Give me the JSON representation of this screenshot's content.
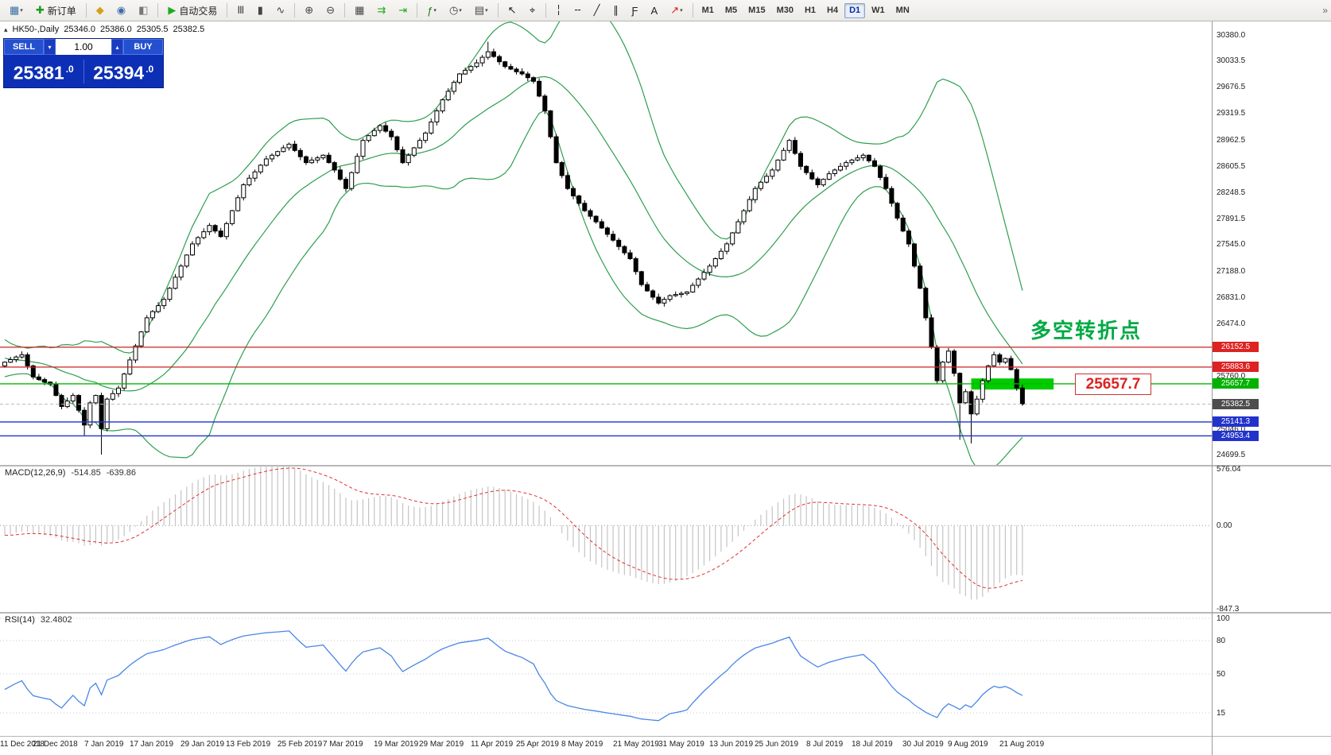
{
  "toolbar": {
    "groups": [
      [
        {
          "name": "new-chart-icon",
          "glyph": "▦",
          "color": "#3a6ea5",
          "dd": true
        },
        {
          "name": "new-order-button",
          "glyph": "✚",
          "color": "#1a9c1a",
          "label": "新订单"
        }
      ],
      [
        {
          "name": "favorites-icon",
          "glyph": "◆",
          "color": "#d4a017"
        },
        {
          "name": "market-watch-icon",
          "glyph": "◉",
          "color": "#3a6ea5"
        },
        {
          "name": "data-window-icon",
          "glyph": "◧",
          "color": "#777777"
        }
      ],
      [
        {
          "name": "autotrading-button",
          "glyph": "▶",
          "color": "#1faa1f",
          "label": "自动交易"
        }
      ],
      [
        {
          "name": "bar-chart-icon",
          "glyph": "Ⅲ",
          "color": "#444444"
        },
        {
          "name": "candlestick-chart-icon",
          "glyph": "▮",
          "color": "#444444"
        },
        {
          "name": "line-chart-icon",
          "glyph": "∿",
          "color": "#444444"
        }
      ],
      [
        {
          "name": "zoom-in-icon",
          "glyph": "⊕",
          "color": "#444444"
        },
        {
          "name": "zoom-out-icon",
          "glyph": "⊖",
          "color": "#444444"
        }
      ],
      [
        {
          "name": "tile-windows-icon",
          "glyph": "▦",
          "color": "#444444"
        },
        {
          "name": "auto-scroll-icon",
          "glyph": "⇉",
          "color": "#1faa1f"
        },
        {
          "name": "chart-shift-icon",
          "glyph": "⇥",
          "color": "#1faa1f"
        }
      ],
      [
        {
          "name": "indicators-icon",
          "glyph": "ƒ",
          "color": "#1a7a1a",
          "dd": true
        },
        {
          "name": "periods-icon",
          "glyph": "◷",
          "color": "#444444",
          "dd": true
        },
        {
          "name": "templates-icon",
          "glyph": "▤",
          "color": "#444444",
          "dd": true
        }
      ],
      [
        {
          "name": "cursor-icon",
          "glyph": "↖",
          "color": "#222222"
        },
        {
          "name": "crosshair-icon",
          "glyph": "⌖",
          "color": "#222222"
        }
      ],
      [
        {
          "name": "vertical-line-icon",
          "glyph": "╎",
          "color": "#222222"
        },
        {
          "name": "horizontal-line-icon",
          "glyph": "╌",
          "color": "#222222"
        },
        {
          "name": "trendline-icon",
          "glyph": "╱",
          "color": "#222222"
        },
        {
          "name": "channel-icon",
          "glyph": "∥",
          "color": "#222222"
        },
        {
          "name": "fibonacci-icon",
          "glyph": "Ƒ",
          "color": "#222222"
        },
        {
          "name": "text-tool-icon",
          "glyph": "A",
          "color": "#222222"
        },
        {
          "name": "arrows-tool-icon",
          "glyph": "↗",
          "color": "#cc2222",
          "dd": true
        }
      ]
    ],
    "timeframes": [
      "M1",
      "M5",
      "M15",
      "M30",
      "H1",
      "H4",
      "D1",
      "W1",
      "MN"
    ],
    "active_timeframe": "D1",
    "overflow_glyph": "»"
  },
  "chart_header": {
    "expander_icon": "▴",
    "symbol": "HK50-,Daily",
    "open": "25346.0",
    "high": "25386.0",
    "low": "25305.5",
    "close": "25382.5"
  },
  "trade_widget": {
    "sell_label": "SELL",
    "buy_label": "BUY",
    "volume": "1.00",
    "vol_down_icon": "▾",
    "vol_up_icon": "▴",
    "sell_price_main": "25381",
    "sell_price_sup": ".0",
    "buy_price_main": "25394",
    "buy_price_sup": ".0"
  },
  "annotation": {
    "text": "多空转折点",
    "color": "#00aa44"
  },
  "level_label": {
    "text": "25657.7",
    "price": 25657.7
  },
  "price_scale": {
    "ticks": [
      [
        "30380.0",
        30380.0
      ],
      [
        "30033.5",
        30033.5
      ],
      [
        "29676.5",
        29676.5
      ],
      [
        "29319.5",
        29319.5
      ],
      [
        "28962.5",
        28962.5
      ],
      [
        "28605.5",
        28605.5
      ],
      [
        "28248.5",
        28248.5
      ],
      [
        "27891.5",
        27891.5
      ],
      [
        "27545.0",
        27545.0
      ],
      [
        "27188.0",
        27188.0
      ],
      [
        "26831.0",
        26831.0
      ],
      [
        "26474.0",
        26474.0
      ],
      [
        "26117.0",
        26117.0
      ],
      [
        "25760.0",
        25760.0
      ],
      [
        "25403.0",
        25403.0
      ],
      [
        "25046.0",
        25046.0
      ],
      [
        "24699.5",
        24699.5
      ]
    ],
    "tags": [
      [
        "26152.5",
        26152.5,
        "#dd2222"
      ],
      [
        "25883.6",
        25883.6,
        "#dd2222"
      ],
      [
        "25657.7",
        25657.7,
        "#00b300"
      ],
      [
        "25382.5",
        25382.5,
        "#4d4d4d"
      ],
      [
        "25141.3",
        25141.3,
        "#2233cc"
      ],
      [
        "24953.4",
        24953.4,
        "#2233cc"
      ]
    ]
  },
  "levels": [
    {
      "price": 26152.5,
      "color": "#cc2222",
      "width": 1.2
    },
    {
      "price": 25883.6,
      "color": "#cc2222",
      "width": 1.2
    },
    {
      "price": 25657.7,
      "color": "#00bb00",
      "width": 1.4
    },
    {
      "price": 25382.5,
      "color": "#bbbbbb",
      "width": 1,
      "dashed": true
    },
    {
      "price": 25141.3,
      "color": "#2233cc",
      "width": 1.4
    },
    {
      "price": 24953.4,
      "color": "#2233cc",
      "width": 1.4
    }
  ],
  "highlight_rect": {
    "start_bar": 170,
    "end_bar": 184.5,
    "top_price": 25730,
    "bottom_price": 25580,
    "color": "#00cc00"
  },
  "macd_panel": {
    "label": "MACD(12,26,9)",
    "value1": "-514.85",
    "value2": "-639.86",
    "axis": [
      [
        "576.04",
        576.04
      ],
      [
        "0.00",
        0
      ],
      [
        "-847.3",
        -847.3
      ]
    ]
  },
  "rsi_panel": {
    "label": "RSI(14)",
    "value": "32.4802",
    "levels": [
      [
        "100",
        100
      ],
      [
        "80",
        80
      ],
      [
        "50",
        50
      ],
      [
        "15",
        15
      ]
    ]
  },
  "chart_data": {
    "type": "candlestick",
    "symbol": "HK50",
    "timeframe": "Daily",
    "title": "HK50-,Daily",
    "ylim": [
      24560,
      30560
    ],
    "first_open": 25900,
    "closes": [
      25950,
      25985,
      26020,
      26050,
      25900,
      25750,
      25715,
      25680,
      25650,
      25500,
      25350,
      25425,
      25500,
      25300,
      25100,
      25400,
      25500,
      25050,
      25450,
      25525,
      25600,
      25790,
      25980,
      26170,
      26360,
      26550,
      26635,
      26715,
      26800,
      26950,
      27100,
      27250,
      27400,
      27550,
      27635,
      27715,
      27800,
      27725,
      27650,
      27825,
      28000,
      28175,
      28350,
      28440,
      28525,
      28615,
      28700,
      28750,
      28800,
      28850,
      28900,
      28815,
      28730,
      28650,
      28685,
      28715,
      28750,
      28650,
      28550,
      28425,
      28300,
      28515,
      28735,
      28950,
      29015,
      29085,
      29150,
      29075,
      29000,
      28825,
      28650,
      28750,
      28850,
      28950,
      29050,
      29200,
      29350,
      29500,
      29615,
      29735,
      29850,
      29900,
      29950,
      30000,
      30075,
      30150,
      30085,
      30015,
      29950,
      29915,
      29880,
      29850,
      29800,
      29750,
      29550,
      29350,
      29000,
      28650,
      28475,
      28300,
      28200,
      28100,
      28000,
      27925,
      27850,
      27765,
      27680,
      27600,
      27515,
      27430,
      27350,
      27175,
      27000,
      26915,
      26830,
      26750,
      26800,
      26850,
      26865,
      26880,
      26900,
      26990,
      27075,
      27165,
      27250,
      27350,
      27450,
      27550,
      27700,
      27850,
      28000,
      28150,
      28300,
      28385,
      28465,
      28550,
      28685,
      28815,
      28950,
      28775,
      28600,
      28515,
      28430,
      28350,
      28425,
      28500,
      28550,
      28600,
      28650,
      28685,
      28715,
      28750,
      28675,
      28600,
      28450,
      28300,
      28100,
      27900,
      27725,
      27550,
      27250,
      26950,
      26550,
      26150,
      25700,
      25950,
      26100,
      25800,
      25400,
      25550,
      25250,
      25450,
      25700,
      25900,
      26050,
      25950,
      26000,
      25850,
      25600,
      25382.5
    ],
    "warmup_closes": [
      26350,
      26280,
      26200,
      26150,
      26100,
      26000,
      25950,
      26050,
      26150,
      26100,
      26050,
      26000,
      25950,
      25900,
      25850,
      25800,
      25850,
      25900,
      25950,
      25900
    ],
    "special_wicks": {
      "14": {
        "low": 24960
      },
      "17": {
        "low": 24700
      },
      "85": {
        "high": 30285
      },
      "168": {
        "low": 24900
      },
      "170": {
        "low": 24850
      }
    },
    "indicators": [
      {
        "name": "Bollinger Bands",
        "period": 20,
        "deviation": 2,
        "color": "#2f9e4f"
      },
      {
        "name": "MACD",
        "fast": 12,
        "slow": 26,
        "signal": 9,
        "histogram_color": "#c4c4c4",
        "signal_color": "#e03030"
      },
      {
        "name": "RSI",
        "period": 14,
        "color": "#4a86e8"
      }
    ],
    "date_labels": [
      [
        "11 Dec 2018",
        0
      ],
      [
        "21 Dec 2018",
        8
      ],
      [
        "7 Jan 2019",
        17
      ],
      [
        "17 Jan 2019",
        25
      ],
      [
        "29 Jan 2019",
        34
      ],
      [
        "13 Feb 2019",
        42
      ],
      [
        "25 Feb 2019",
        51
      ],
      [
        "7 Mar 2019",
        59
      ],
      [
        "19 Mar 2019",
        68
      ],
      [
        "29 Mar 2019",
        76
      ],
      [
        "11 Apr 2019",
        85
      ],
      [
        "25 Apr 2019",
        93
      ],
      [
        "8 May 2019",
        101
      ],
      [
        "21 May 2019",
        110
      ],
      [
        "31 May 2019",
        118
      ],
      [
        "13 Jun 2019",
        127
      ],
      [
        "25 Jun 2019",
        135
      ],
      [
        "8 Jul 2019",
        144
      ],
      [
        "18 Jul 2019",
        152
      ],
      [
        "30 Jul 2019",
        161
      ],
      [
        "9 Aug 2019",
        169
      ],
      [
        "21 Aug 2019",
        178
      ]
    ]
  }
}
